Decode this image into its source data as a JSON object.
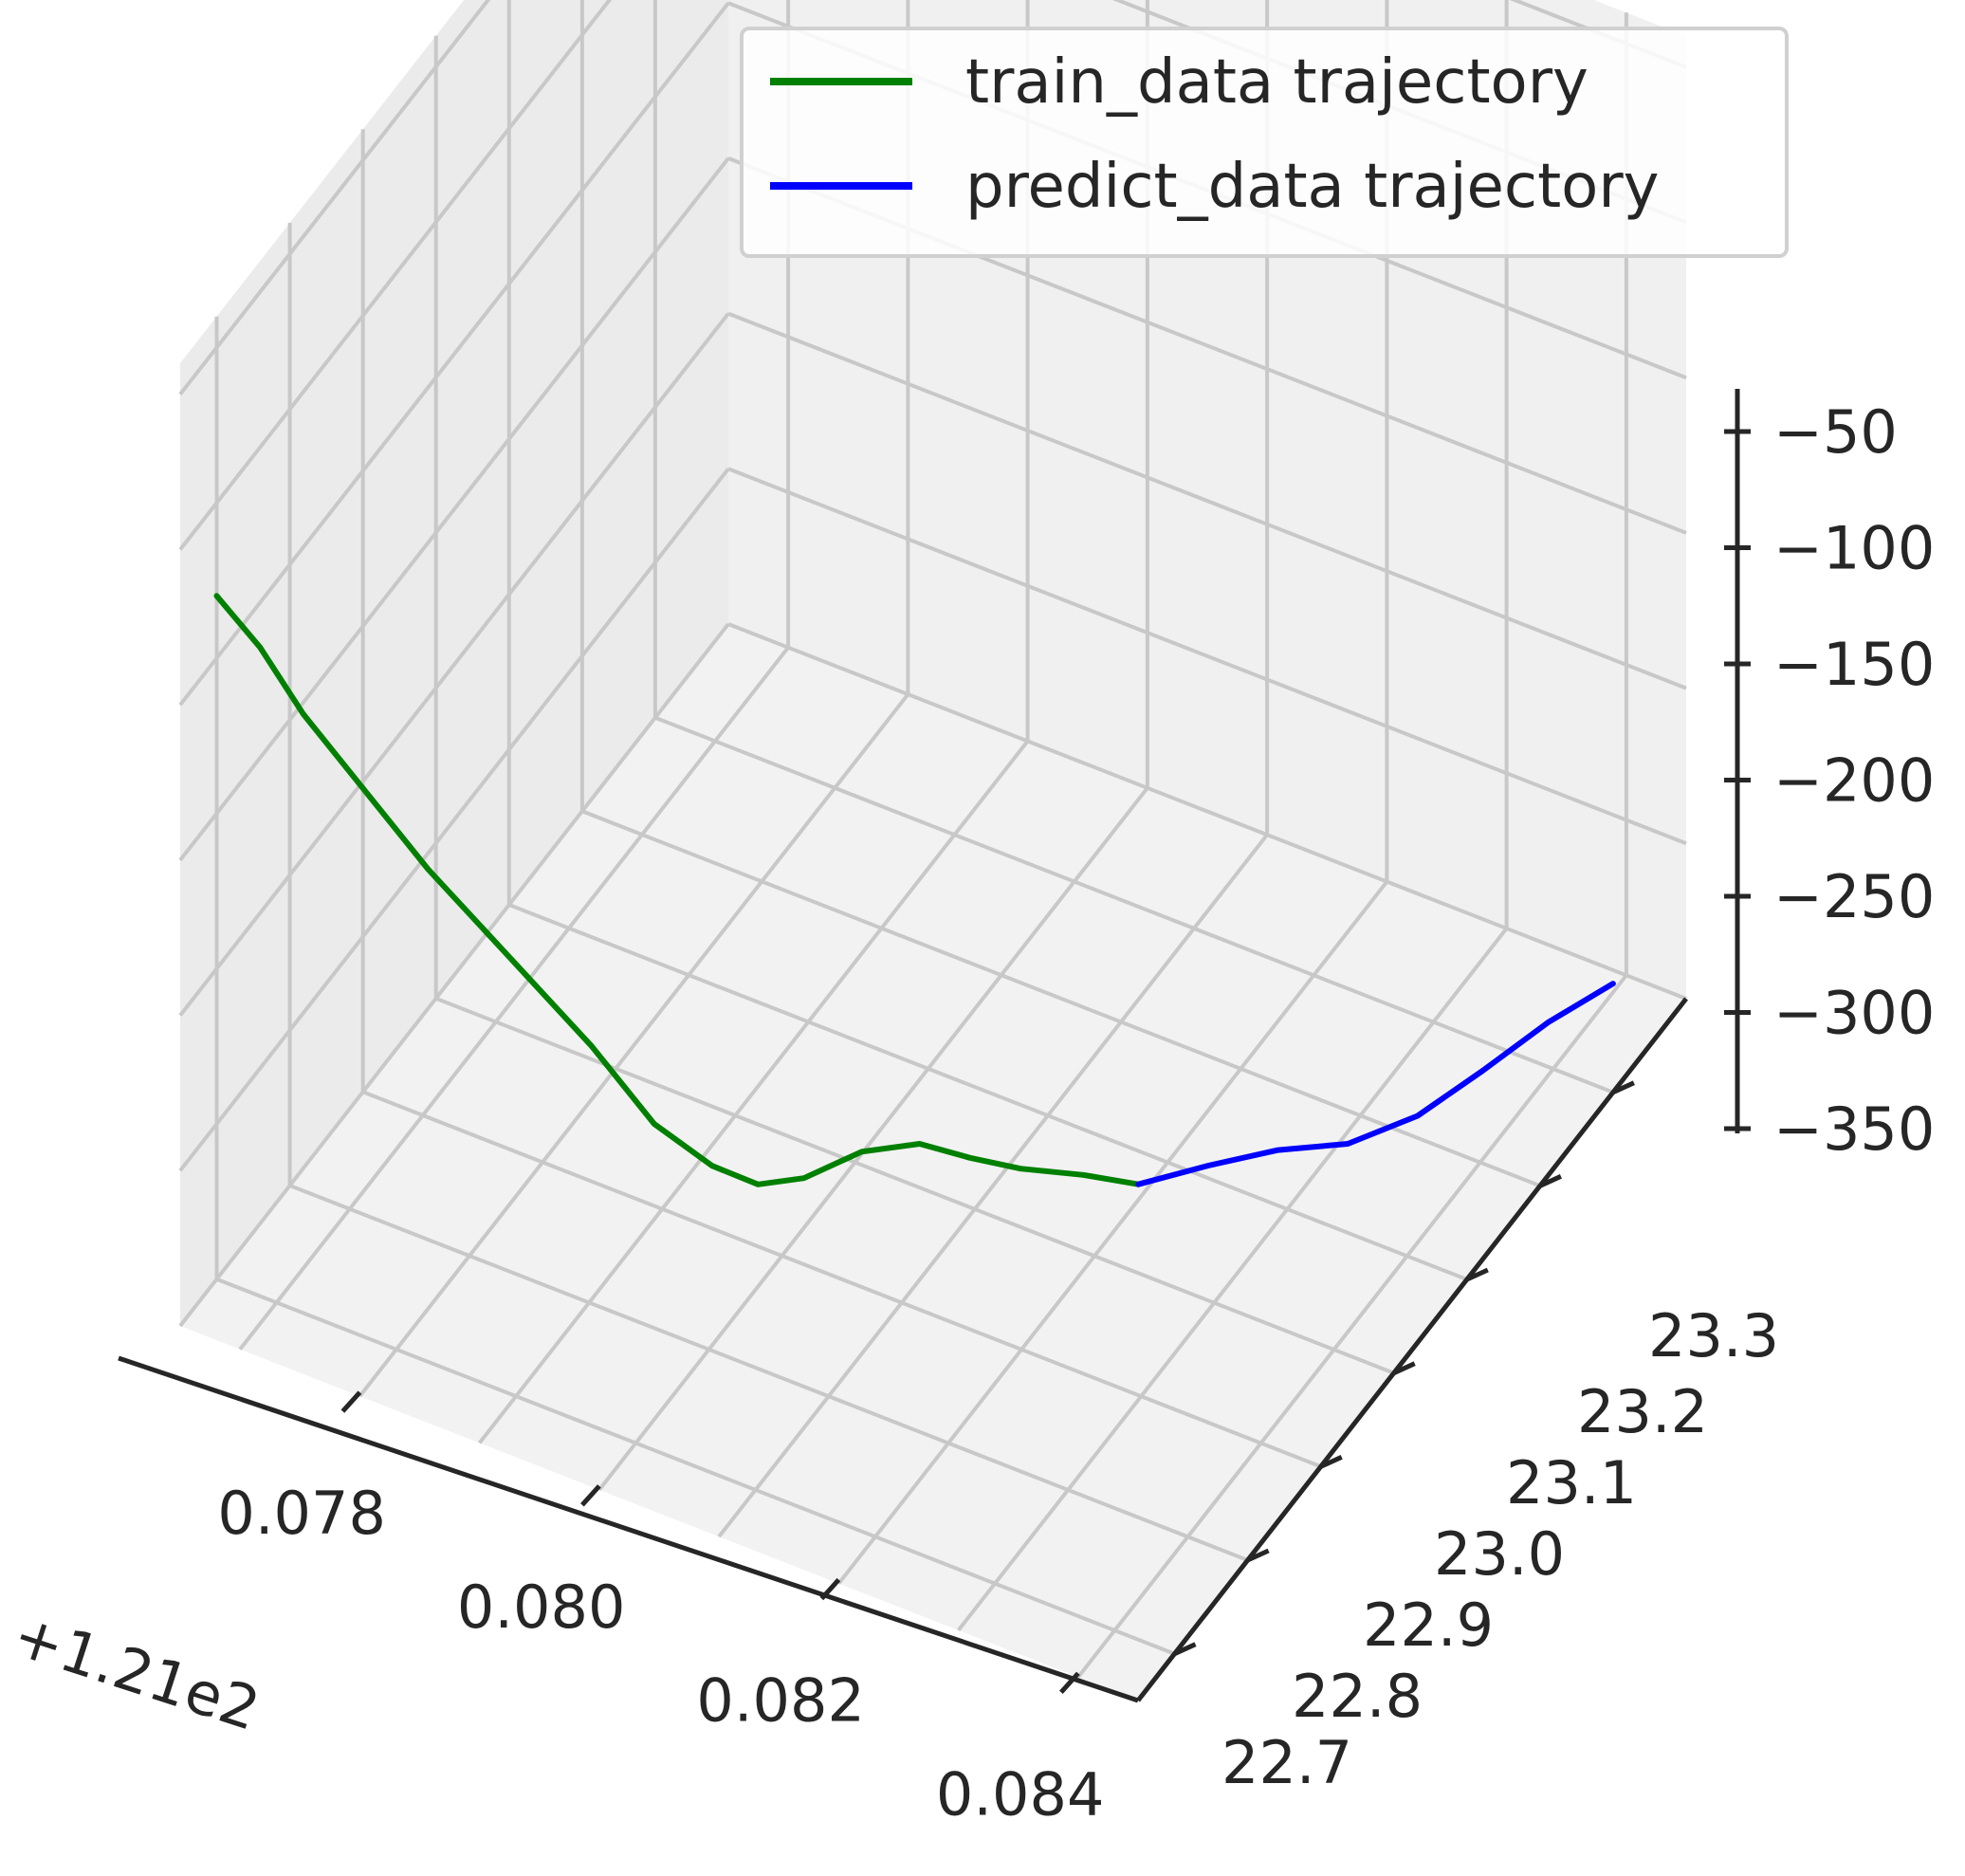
{
  "chart_data": {
    "type": "line",
    "projection": "3d",
    "title": "",
    "x_axis": {
      "label": "",
      "offset_text": "+1.21e2",
      "ticks": [
        "0.078",
        "0.080",
        "0.082",
        "0.084"
      ],
      "range": [
        0.0765,
        0.0845
      ]
    },
    "y_axis": {
      "label": "",
      "ticks": [
        "22.7",
        "22.8",
        "22.9",
        "23.0",
        "23.1",
        "23.2",
        "23.3"
      ],
      "range": [
        22.65,
        23.4
      ]
    },
    "z_axis": {
      "label": "",
      "ticks": [
        "−50",
        "−100",
        "−150",
        "−200",
        "−250",
        "−300",
        "−350"
      ],
      "range": [
        -350,
        -40
      ]
    },
    "grid": true,
    "legend": {
      "position": "top-right"
    },
    "series": [
      {
        "name": "train_data trajectory",
        "color": "#008000",
        "x": [
          0.0765,
          0.0768,
          0.0771,
          0.0775,
          0.0779,
          0.0784,
          0.0789,
          0.0793,
          0.0796,
          0.0798,
          0.08,
          0.0803,
          0.0806,
          0.0809,
          0.0812,
          0.0816,
          0.082
        ],
        "y": [
          22.7,
          22.71,
          22.72,
          22.74,
          22.76,
          22.79,
          22.82,
          22.84,
          22.87,
          22.9,
          22.93,
          22.96,
          22.99,
          23.01,
          23.03,
          23.05,
          23.06
        ],
        "z": [
          -130,
          -145,
          -165,
          -190,
          -215,
          -245,
          -275,
          -300,
          -318,
          -330,
          -334,
          -330,
          -332,
          -338,
          -343,
          -345,
          -345
        ]
      },
      {
        "name": "predict_data trajectory",
        "color": "#0000ff",
        "x": [
          0.082,
          0.0824,
          0.0828,
          0.0832,
          0.0836,
          0.0839,
          0.0842,
          0.0845
        ],
        "y": [
          23.06,
          23.09,
          23.12,
          23.15,
          23.18,
          23.22,
          23.26,
          23.3
        ],
        "z": [
          -345,
          -342,
          -340,
          -341,
          -335,
          -328,
          -320,
          -315
        ]
      }
    ]
  }
}
